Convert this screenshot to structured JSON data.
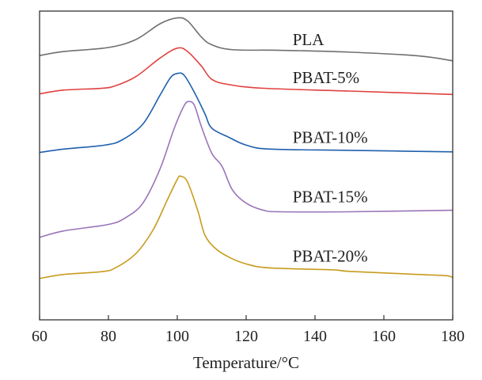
{
  "chart_data": {
    "type": "line",
    "title": "",
    "xlabel": "Temperature/°C",
    "ylabel": "",
    "xlim": [
      60,
      180
    ],
    "ylim": [
      0,
      100
    ],
    "xticks": [
      60,
      80,
      100,
      120,
      140,
      160,
      180
    ],
    "grid": false,
    "legend": "inline labels right of peaks",
    "series": [
      {
        "name": "PLA",
        "color": "#6f6f6f",
        "label_at": [
          133.5,
          90.8
        ],
        "x": [
          60,
          67,
          80,
          88,
          95,
          100,
          103,
          107,
          110,
          116,
          130,
          150,
          170,
          180
        ],
        "y": [
          85.6,
          86.9,
          88.2,
          90.8,
          95.9,
          97.8,
          96.8,
          91.6,
          89.1,
          87.5,
          87.3,
          86.7,
          85.5,
          83.9
        ]
      },
      {
        "name": "PBAT-5%",
        "color": "#e0413f",
        "label_at": [
          133.5,
          78.4
        ],
        "x": [
          60,
          67,
          78,
          82,
          88,
          95,
          100,
          103,
          107,
          110,
          115,
          125,
          150,
          180
        ],
        "y": [
          73.2,
          74.4,
          75,
          75.8,
          78.8,
          84.8,
          88,
          86.9,
          82.2,
          77.9,
          76.2,
          75,
          74.1,
          73
        ]
      },
      {
        "name": "PBAT-10%",
        "color": "#1f5fae",
        "label_at": [
          133.5,
          59.1
        ],
        "x": [
          60,
          67,
          79,
          84,
          90,
          95,
          98,
          100,
          102,
          105,
          108,
          110,
          115,
          120,
          127,
          150,
          180
        ],
        "y": [
          54.2,
          55.3,
          56.6,
          58.3,
          63.4,
          72.8,
          78.4,
          79.8,
          79.2,
          73.6,
          66.8,
          62.1,
          59.1,
          56.6,
          55.3,
          54.9,
          54.4
        ]
      },
      {
        "name": "PBAT-15%",
        "color": "#9a74b9",
        "label_at": [
          133.5,
          39.9
        ],
        "x": [
          60,
          67,
          80,
          85,
          90,
          95,
          99,
          102,
          103.5,
          105,
          107,
          110,
          113,
          116,
          120,
          125,
          130,
          150,
          180
        ],
        "y": [
          26.7,
          28.8,
          30.9,
          33.1,
          37.8,
          48.9,
          61.7,
          69.4,
          70.7,
          69.4,
          62.6,
          54,
          49.7,
          42.1,
          37.8,
          35.5,
          35,
          35,
          35.5
        ]
      },
      {
        "name": "PBAT-20%",
        "color": "#c89b1e",
        "label_at": [
          133.5,
          20.7
        ],
        "x": [
          60,
          67,
          78,
          82,
          88,
          93,
          97,
          100,
          101,
          103,
          106,
          108,
          111,
          115,
          120,
          127,
          145,
          150,
          170,
          178,
          180
        ],
        "y": [
          13.4,
          14.7,
          15.6,
          16.8,
          21.5,
          29.2,
          38.6,
          45.5,
          46.5,
          44.6,
          35.2,
          27.5,
          23.2,
          20.3,
          18.1,
          16.8,
          16.2,
          15.7,
          14.7,
          14.3,
          13.7
        ]
      }
    ]
  }
}
